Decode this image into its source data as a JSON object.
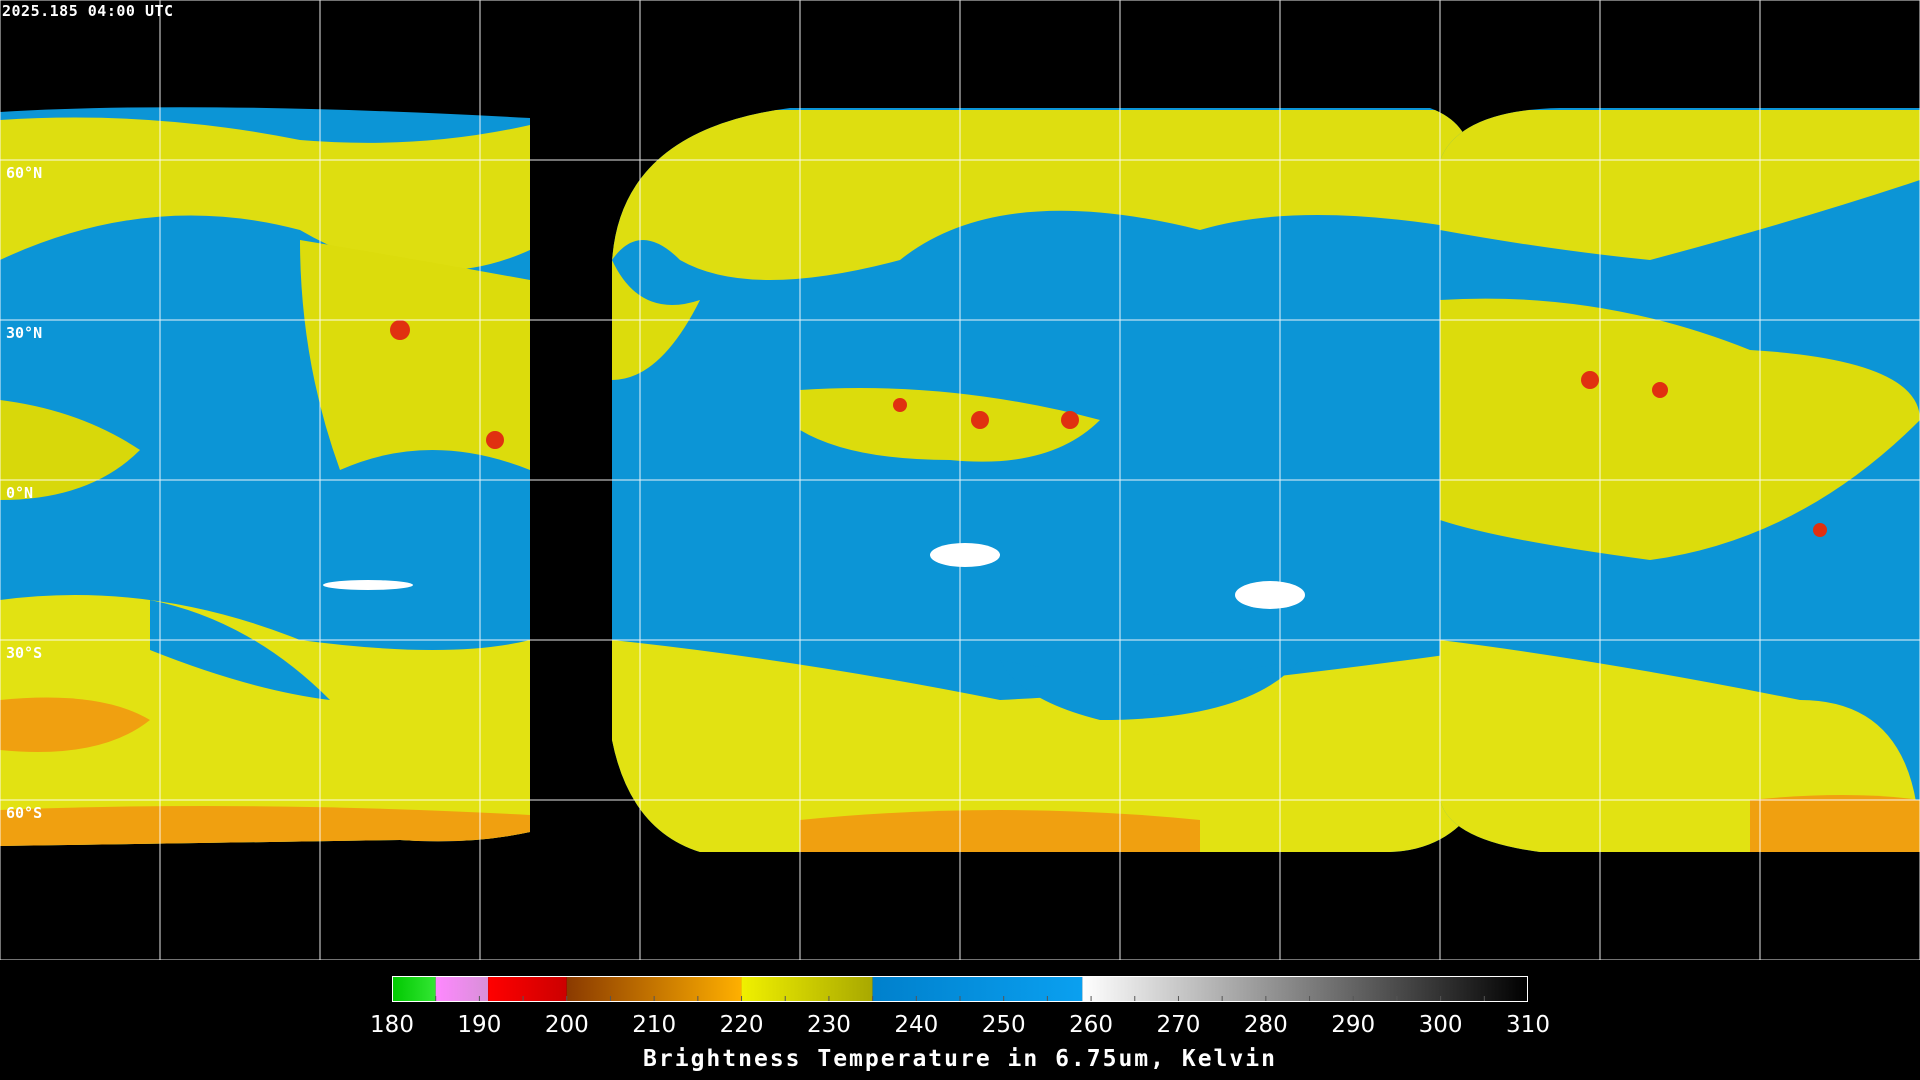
{
  "timestamp": "2025.185 04:00 UTC",
  "lat_labels": [
    {
      "lat": 60,
      "text": "60°N"
    },
    {
      "lat": 30,
      "text": "30°N"
    },
    {
      "lat": 0,
      "text": "0°N"
    },
    {
      "lat": -30,
      "text": "30°S"
    },
    {
      "lat": -60,
      "text": "60°S"
    }
  ],
  "colorbar": {
    "title": "Brightness Temperature in 6.75um, Kelvin",
    "min": 180,
    "max": 310,
    "ticks": [
      "180",
      "190",
      "200",
      "210",
      "220",
      "230",
      "240",
      "250",
      "260",
      "270",
      "280",
      "290",
      "300",
      "310"
    ],
    "segments": [
      {
        "from": 180,
        "to": 185,
        "c1": "#00c800",
        "c2": "#33e633"
      },
      {
        "from": 185,
        "to": 191,
        "c1": "#ff88ff",
        "c2": "#d890d8"
      },
      {
        "from": 191,
        "to": 200,
        "c1": "#ff0000",
        "c2": "#cc0000"
      },
      {
        "from": 200,
        "to": 220,
        "c1": "#8a3a00",
        "c2": "#ffb000"
      },
      {
        "from": 220,
        "to": 235,
        "c1": "#f0f000",
        "c2": "#a8a800"
      },
      {
        "from": 235,
        "to": 259,
        "c1": "#0080cc",
        "c2": "#0aa0f0"
      },
      {
        "from": 259,
        "to": 310,
        "c1": "#ffffff",
        "c2": "#000000"
      }
    ]
  },
  "colors": {
    "moisture": "#e6e600",
    "dry": "#0c95d6",
    "background": "#000000",
    "grid": "#ffffff"
  }
}
